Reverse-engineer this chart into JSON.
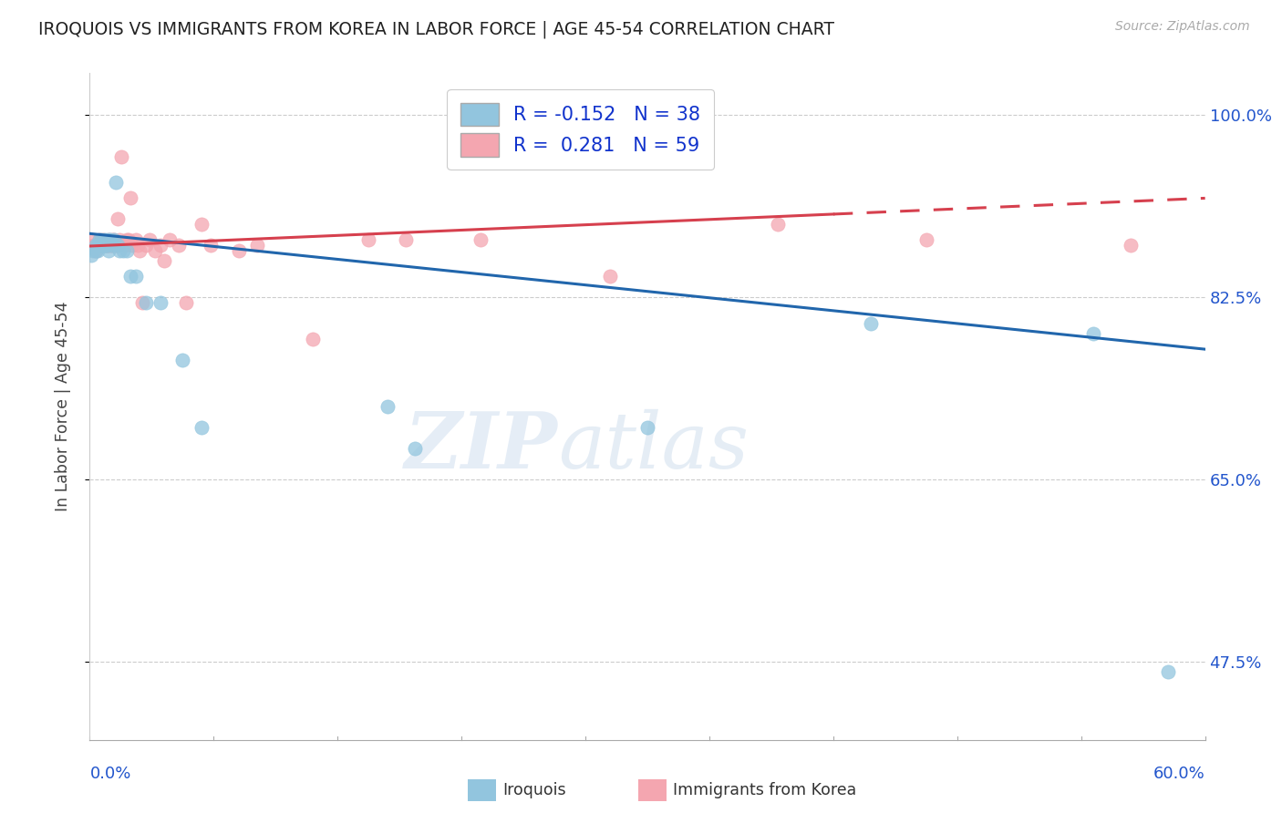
{
  "title": "IROQUOIS VS IMMIGRANTS FROM KOREA IN LABOR FORCE | AGE 45-54 CORRELATION CHART",
  "source_text": "Source: ZipAtlas.com",
  "ylabel": "In Labor Force | Age 45-54",
  "yticks": [
    0.475,
    0.65,
    0.825,
    1.0
  ],
  "ytick_labels": [
    "47.5%",
    "65.0%",
    "82.5%",
    "100.0%"
  ],
  "xmin": 0.0,
  "xmax": 0.6,
  "ymin": 0.4,
  "ymax": 1.04,
  "legend_r_blue": "-0.152",
  "legend_n_blue": "38",
  "legend_r_pink": "0.281",
  "legend_n_pink": "59",
  "blue_color": "#92c5de",
  "pink_color": "#f4a6b0",
  "trend_blue": "#2166ac",
  "trend_pink": "#d6404e",
  "watermark_zip": "ZIP",
  "watermark_atlas": "atlas",
  "iroquois_x": [
    0.001,
    0.002,
    0.003,
    0.003,
    0.004,
    0.004,
    0.005,
    0.005,
    0.006,
    0.006,
    0.007,
    0.007,
    0.008,
    0.008,
    0.009,
    0.009,
    0.01,
    0.01,
    0.011,
    0.012,
    0.013,
    0.014,
    0.015,
    0.016,
    0.018,
    0.02,
    0.022,
    0.025,
    0.03,
    0.038,
    0.05,
    0.06,
    0.16,
    0.175,
    0.3,
    0.42,
    0.54,
    0.58
  ],
  "iroquois_y": [
    0.865,
    0.87,
    0.87,
    0.875,
    0.87,
    0.875,
    0.875,
    0.88,
    0.875,
    0.88,
    0.875,
    0.875,
    0.875,
    0.88,
    0.875,
    0.875,
    0.87,
    0.88,
    0.88,
    0.875,
    0.88,
    0.935,
    0.875,
    0.87,
    0.87,
    0.87,
    0.845,
    0.845,
    0.82,
    0.82,
    0.765,
    0.7,
    0.72,
    0.68,
    0.7,
    0.8,
    0.79,
    0.465
  ],
  "korea_x": [
    0.001,
    0.002,
    0.003,
    0.003,
    0.004,
    0.004,
    0.005,
    0.005,
    0.005,
    0.006,
    0.006,
    0.007,
    0.007,
    0.008,
    0.009,
    0.009,
    0.01,
    0.01,
    0.01,
    0.011,
    0.012,
    0.012,
    0.013,
    0.013,
    0.014,
    0.015,
    0.015,
    0.016,
    0.017,
    0.018,
    0.019,
    0.02,
    0.021,
    0.022,
    0.023,
    0.025,
    0.026,
    0.027,
    0.028,
    0.03,
    0.032,
    0.035,
    0.038,
    0.04,
    0.043,
    0.048,
    0.052,
    0.06,
    0.065,
    0.08,
    0.09,
    0.12,
    0.15,
    0.17,
    0.21,
    0.28,
    0.37,
    0.45,
    0.56
  ],
  "korea_y": [
    0.88,
    0.875,
    0.87,
    0.875,
    0.875,
    0.875,
    0.875,
    0.875,
    0.88,
    0.875,
    0.875,
    0.875,
    0.88,
    0.875,
    0.875,
    0.875,
    0.875,
    0.875,
    0.88,
    0.875,
    0.88,
    0.875,
    0.875,
    0.88,
    0.875,
    0.9,
    0.875,
    0.88,
    0.96,
    0.875,
    0.875,
    0.88,
    0.88,
    0.92,
    0.875,
    0.88,
    0.875,
    0.87,
    0.82,
    0.875,
    0.88,
    0.87,
    0.875,
    0.86,
    0.88,
    0.875,
    0.82,
    0.895,
    0.875,
    0.87,
    0.875,
    0.785,
    0.88,
    0.88,
    0.88,
    0.845,
    0.895,
    0.88,
    0.875
  ],
  "trend_blue_x0": 0.0,
  "trend_blue_y0": 0.886,
  "trend_blue_x1": 0.6,
  "trend_blue_y1": 0.775,
  "trend_pink_x0": 0.0,
  "trend_pink_y0": 0.874,
  "trend_pink_x1": 0.6,
  "trend_pink_y1": 0.92,
  "trend_pink_solid_end": 0.4
}
